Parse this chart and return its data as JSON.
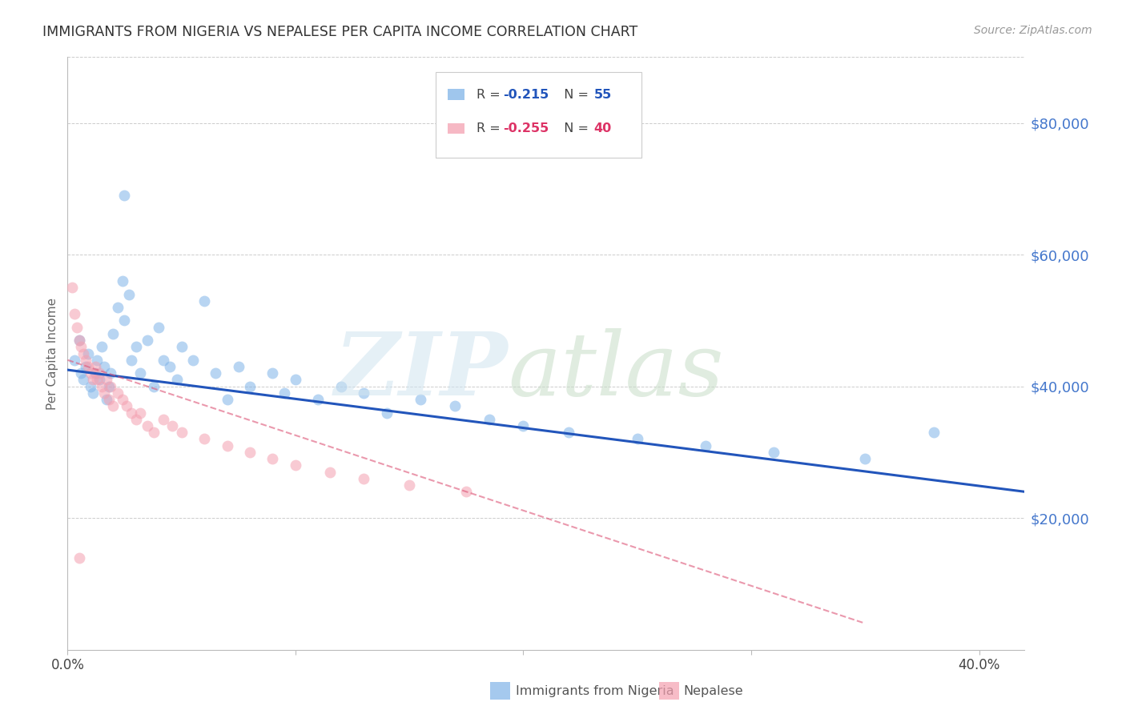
{
  "title": "IMMIGRANTS FROM NIGERIA VS NEPALESE PER CAPITA INCOME CORRELATION CHART",
  "source": "Source: ZipAtlas.com",
  "ylabel": "Per Capita Income",
  "xlim": [
    0.0,
    0.42
  ],
  "ylim": [
    0,
    90000
  ],
  "xtick_labels": [
    "0.0%",
    "",
    "",
    "",
    "40.0%"
  ],
  "xtick_values": [
    0.0,
    0.1,
    0.2,
    0.3,
    0.4
  ],
  "ytick_values": [
    20000,
    40000,
    60000,
    80000
  ],
  "ytick_labels": [
    "$20,000",
    "$40,000",
    "$60,000",
    "$80,000"
  ],
  "grid_color": "#cccccc",
  "legend_label1": "Immigrants from Nigeria",
  "legend_label2": "Nepalese",
  "legend_r1": "R = ",
  "legend_r1_val": "-0.215",
  "legend_n1": "N = ",
  "legend_n1_val": "55",
  "legend_r2": "R = ",
  "legend_r2_val": "-0.255",
  "legend_n2": "N = ",
  "legend_n2_val": "40",
  "color_nigeria": "#7fb3e8",
  "color_nepalese": "#f4a0b0",
  "color_line_nigeria": "#2255bb",
  "color_line_nepalese": "#dd5577",
  "nigeria_x": [
    0.003,
    0.005,
    0.006,
    0.007,
    0.008,
    0.009,
    0.01,
    0.011,
    0.012,
    0.013,
    0.014,
    0.015,
    0.016,
    0.017,
    0.018,
    0.019,
    0.02,
    0.022,
    0.024,
    0.025,
    0.027,
    0.028,
    0.03,
    0.032,
    0.035,
    0.038,
    0.04,
    0.042,
    0.045,
    0.048,
    0.05,
    0.055,
    0.06,
    0.065,
    0.07,
    0.075,
    0.08,
    0.09,
    0.095,
    0.1,
    0.11,
    0.12,
    0.13,
    0.14,
    0.155,
    0.17,
    0.185,
    0.2,
    0.22,
    0.25,
    0.28,
    0.31,
    0.35,
    0.38,
    0.025
  ],
  "nigeria_y": [
    44000,
    47000,
    42000,
    41000,
    43000,
    45000,
    40000,
    39000,
    42000,
    44000,
    41000,
    46000,
    43000,
    38000,
    40000,
    42000,
    48000,
    52000,
    56000,
    50000,
    54000,
    44000,
    46000,
    42000,
    47000,
    40000,
    49000,
    44000,
    43000,
    41000,
    46000,
    44000,
    53000,
    42000,
    38000,
    43000,
    40000,
    42000,
    39000,
    41000,
    38000,
    40000,
    39000,
    36000,
    38000,
    37000,
    35000,
    34000,
    33000,
    32000,
    31000,
    30000,
    29000,
    33000,
    69000
  ],
  "nepalese_x": [
    0.002,
    0.003,
    0.004,
    0.005,
    0.006,
    0.007,
    0.008,
    0.009,
    0.01,
    0.011,
    0.012,
    0.013,
    0.014,
    0.015,
    0.016,
    0.017,
    0.018,
    0.019,
    0.02,
    0.022,
    0.024,
    0.026,
    0.028,
    0.03,
    0.032,
    0.035,
    0.038,
    0.042,
    0.046,
    0.05,
    0.06,
    0.07,
    0.08,
    0.09,
    0.1,
    0.115,
    0.13,
    0.15,
    0.175,
    0.005
  ],
  "nepalese_y": [
    55000,
    51000,
    49000,
    47000,
    46000,
    45000,
    44000,
    43000,
    42000,
    41000,
    43000,
    41000,
    42000,
    40000,
    39000,
    41000,
    38000,
    40000,
    37000,
    39000,
    38000,
    37000,
    36000,
    35000,
    36000,
    34000,
    33000,
    35000,
    34000,
    33000,
    32000,
    31000,
    30000,
    29000,
    28000,
    27000,
    26000,
    25000,
    24000,
    14000
  ],
  "nigeria_trendline_x": [
    0.0,
    0.42
  ],
  "nigeria_trendline_y": [
    42500,
    24000
  ],
  "nepalese_trendline_x": [
    0.0,
    0.35
  ],
  "nepalese_trendline_y": [
    44000,
    4000
  ]
}
